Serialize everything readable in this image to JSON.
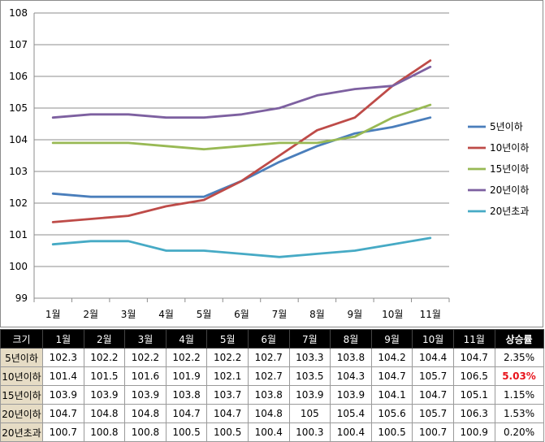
{
  "chart_data": {
    "type": "line",
    "categories": [
      "1월",
      "2월",
      "3월",
      "4월",
      "5월",
      "6월",
      "7월",
      "8월",
      "9월",
      "10월",
      "11월"
    ],
    "ylim": [
      99,
      108
    ],
    "yticks": [
      99,
      100,
      101,
      102,
      103,
      104,
      105,
      106,
      107,
      108
    ],
    "grid": true,
    "legend_position": "right",
    "series": [
      {
        "name": "5년이하",
        "color": "#4a7ebb",
        "values": [
          102.3,
          102.2,
          102.2,
          102.2,
          102.2,
          102.7,
          103.3,
          103.8,
          104.2,
          104.4,
          104.7
        ]
      },
      {
        "name": "10년이하",
        "color": "#be4b48",
        "values": [
          101.4,
          101.5,
          101.6,
          101.9,
          102.1,
          102.7,
          103.5,
          104.3,
          104.7,
          105.7,
          106.5
        ]
      },
      {
        "name": "15년이하",
        "color": "#98b954",
        "values": [
          103.9,
          103.9,
          103.9,
          103.8,
          103.7,
          103.8,
          103.9,
          103.9,
          104.1,
          104.7,
          105.1
        ]
      },
      {
        "name": "20년이하",
        "color": "#7d60a0",
        "values": [
          104.7,
          104.8,
          104.8,
          104.7,
          104.7,
          104.8,
          105,
          105.4,
          105.6,
          105.7,
          106.3
        ]
      },
      {
        "name": "20년초과",
        "color": "#46aac5",
        "values": [
          100.7,
          100.8,
          100.8,
          100.5,
          100.5,
          100.4,
          100.3,
          100.4,
          100.5,
          100.7,
          100.9
        ]
      }
    ]
  },
  "table": {
    "corner": "크기",
    "months": [
      "1월",
      "2월",
      "3월",
      "4월",
      "5월",
      "6월",
      "7월",
      "8월",
      "9월",
      "10월",
      "11월"
    ],
    "rate_header": "상승률",
    "rows": [
      {
        "label": "5년이하",
        "values": [
          "102.3",
          "102.2",
          "102.2",
          "102.2",
          "102.2",
          "102.7",
          "103.3",
          "103.8",
          "104.2",
          "104.4",
          "104.7"
        ],
        "rate": "2.35%",
        "highlight": false
      },
      {
        "label": "10년이하",
        "values": [
          "101.4",
          "101.5",
          "101.6",
          "101.9",
          "102.1",
          "102.7",
          "103.5",
          "104.3",
          "104.7",
          "105.7",
          "106.5"
        ],
        "rate": "5.03%",
        "highlight": true
      },
      {
        "label": "15년이하",
        "values": [
          "103.9",
          "103.9",
          "103.9",
          "103.8",
          "103.7",
          "103.8",
          "103.9",
          "103.9",
          "104.1",
          "104.7",
          "105.1"
        ],
        "rate": "1.15%",
        "highlight": false
      },
      {
        "label": "20년이하",
        "values": [
          "104.7",
          "104.8",
          "104.8",
          "104.7",
          "104.7",
          "104.8",
          "105",
          "105.4",
          "105.6",
          "105.7",
          "106.3"
        ],
        "rate": "1.53%",
        "highlight": false
      },
      {
        "label": "20년초과",
        "values": [
          "100.7",
          "100.8",
          "100.8",
          "100.5",
          "100.5",
          "100.4",
          "100.3",
          "100.4",
          "100.5",
          "100.7",
          "100.9"
        ],
        "rate": "0.20%",
        "highlight": false
      }
    ]
  }
}
